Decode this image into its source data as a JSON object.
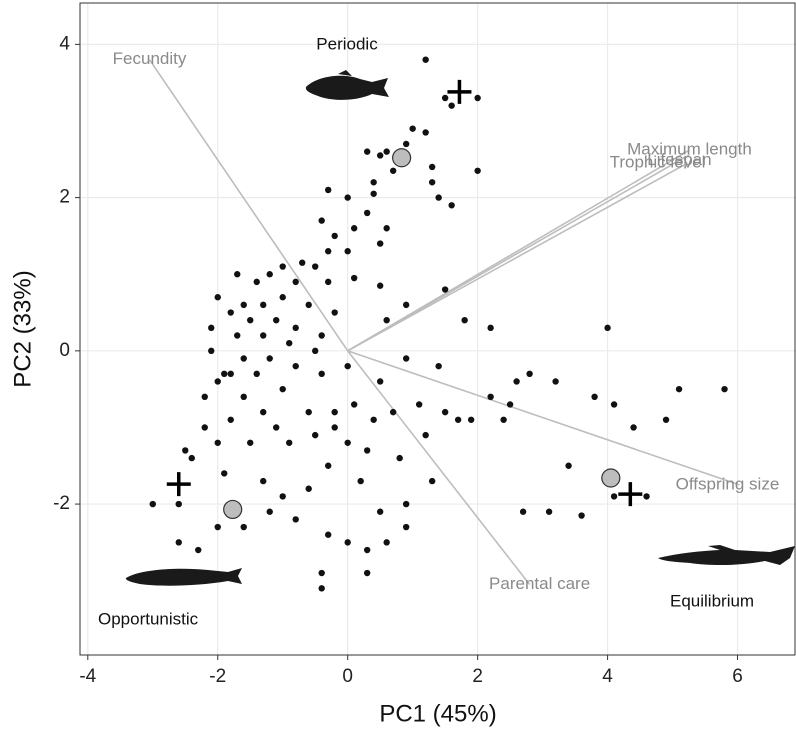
{
  "chart_data": {
    "type": "biplot",
    "x_label": "PC1 (45%)",
    "y_label": "PC2 (33%)",
    "xlim": [
      -4.12,
      6.9
    ],
    "ylim": [
      -3.97,
      4.54
    ],
    "xticks": [
      -4,
      -2,
      0,
      2,
      4,
      6
    ],
    "yticks": [
      -2,
      0,
      2,
      4
    ],
    "grid": true,
    "point_color": "#111111",
    "points": {
      "x": [
        1.2,
        2.0,
        1.5,
        1.6,
        1.0,
        1.2,
        0.9,
        0.6,
        0.3,
        0.5,
        1.3,
        0.7,
        2.0,
        1.3,
        1.4,
        0.4,
        0.4,
        1.6,
        -0.3,
        0.0,
        -0.4,
        0.3,
        0.6,
        -0.2,
        0.1,
        0.5,
        0.0,
        -0.3,
        -0.5,
        -0.7,
        -1.0,
        -1.2,
        -1.4,
        -0.8,
        -0.3,
        0.1,
        0.5,
        1.5,
        0.9,
        0.6,
        1.8,
        2.2,
        -2.0,
        -1.6,
        -1.8,
        -1.3,
        -1.0,
        -0.6,
        -0.2,
        -2.1,
        -1.5,
        -1.1,
        -0.8,
        -0.4,
        -2.1,
        -1.7,
        -1.3,
        -0.9,
        -0.5,
        -1.6,
        -1.2,
        -0.8,
        -1.9,
        -1.4,
        -1.0,
        -0.4,
        0.0,
        0.9,
        -1.6,
        -1.3,
        -1.8,
        -1.1,
        -0.6,
        -2.2,
        -2.0,
        -1.5,
        -2.4,
        -1.9,
        -1.3,
        -0.9,
        -0.5,
        -0.2,
        0.1,
        0.4,
        0.7,
        1.1,
        1.5,
        1.9,
        2.2,
        2.5,
        2.6,
        2.4,
        3.2,
        3.8,
        4.1,
        4.0,
        5.1,
        5.8,
        4.9,
        4.4,
        3.4,
        3.1,
        2.7,
        3.6,
        4.6,
        4.1,
        0.0,
        0.3,
        0.8,
        1.2,
        1.3,
        0.9,
        0.5,
        0.2,
        -0.3,
        -0.6,
        -1.0,
        -1.2,
        -1.6,
        -2.0,
        -2.3,
        -2.6,
        -3.0,
        -2.6,
        -0.8,
        -0.3,
        0.0,
        0.3,
        0.6,
        0.3,
        -0.4,
        -0.4,
        0.9,
        -2.5,
        -2.2,
        -1.8,
        -0.2,
        0.5,
        1.4,
        2.8,
        1.7,
        -1.7,
        -2.0
      ],
      "y": [
        3.8,
        3.3,
        3.3,
        3.2,
        2.9,
        2.85,
        2.7,
        2.6,
        2.6,
        2.55,
        2.4,
        2.35,
        2.35,
        2.2,
        2.0,
        2.2,
        2.05,
        1.9,
        2.1,
        2.0,
        1.7,
        1.8,
        1.6,
        1.5,
        1.6,
        1.4,
        1.3,
        1.3,
        1.1,
        1.15,
        1.1,
        1.0,
        0.9,
        0.9,
        0.9,
        0.95,
        0.85,
        0.8,
        0.6,
        0.4,
        0.4,
        0.3,
        0.7,
        0.6,
        0.5,
        0.6,
        0.7,
        0.6,
        0.5,
        0.3,
        0.4,
        0.4,
        0.3,
        0.2,
        0.0,
        0.2,
        0.2,
        0.1,
        0.0,
        -0.1,
        -0.1,
        -0.2,
        -0.3,
        -0.3,
        -0.5,
        -0.3,
        -0.2,
        -0.1,
        -0.6,
        -0.8,
        -0.9,
        -1.0,
        -0.8,
        -1.0,
        -1.2,
        -1.2,
        -1.4,
        -1.6,
        -1.7,
        -1.2,
        -1.1,
        -1.0,
        -0.7,
        -0.9,
        -0.8,
        -0.7,
        -0.8,
        -0.9,
        -0.6,
        -0.7,
        -0.4,
        -0.9,
        -0.4,
        -0.6,
        -0.7,
        0.3,
        -0.5,
        -0.5,
        -0.9,
        -1.0,
        -1.5,
        -2.1,
        -2.1,
        -2.15,
        -1.9,
        -1.9,
        -1.2,
        -1.3,
        -1.4,
        -1.1,
        -1.7,
        -2.0,
        -2.1,
        -1.7,
        -1.5,
        -1.8,
        -1.9,
        -2.1,
        -2.3,
        -2.3,
        -2.6,
        -2.0,
        -2.0,
        -2.5,
        -2.2,
        -2.4,
        -2.5,
        -2.6,
        -2.5,
        -2.9,
        -2.9,
        -3.1,
        -2.3,
        -1.3,
        -0.6,
        -0.3,
        -0.8,
        -0.4,
        -0.2,
        -0.3,
        -0.9,
        1.0,
        -0.4
      ]
    },
    "loadings": [
      {
        "name": "Fecundity",
        "x": -3.05,
        "y": 3.8
      },
      {
        "name": "Maximum length",
        "x": 5.26,
        "y": 2.62
      },
      {
        "name": "Lifespan",
        "x": 5.26,
        "y": 2.56
      },
      {
        "name": "Trophic level",
        "x": 5.23,
        "y": 2.45
      },
      {
        "name": "Offspring size",
        "x": 6.03,
        "y": -1.75
      },
      {
        "name": "Parental care",
        "x": 2.8,
        "y": -3.05
      }
    ],
    "groups": [
      {
        "name": "Periodic",
        "centroid": [
          0.83,
          2.52
        ],
        "cross": [
          1.72,
          3.38
        ]
      },
      {
        "name": "Opportunistic",
        "centroid": [
          -1.77,
          -2.07
        ],
        "cross": [
          -2.6,
          -1.74
        ]
      },
      {
        "name": "Equilibrium",
        "centroid": [
          4.05,
          -1.66
        ],
        "cross": [
          4.35,
          -1.87
        ]
      }
    ]
  }
}
